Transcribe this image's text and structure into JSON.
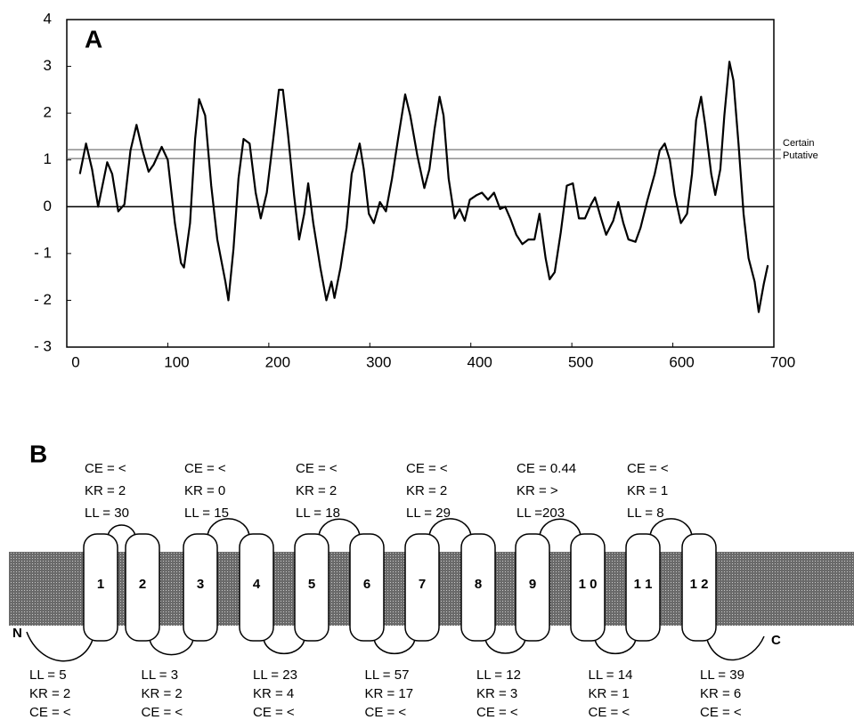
{
  "chart_data": {
    "type": "line",
    "panel_label": "A",
    "x": [
      13,
      19,
      25,
      31,
      40,
      45,
      51,
      57,
      63,
      69,
      75,
      81,
      86,
      94,
      100,
      107,
      113,
      116,
      122,
      127,
      131,
      137,
      143,
      149,
      157,
      160,
      165,
      170,
      175,
      181,
      187,
      192,
      198,
      205,
      210,
      214,
      219,
      225,
      230,
      235,
      239,
      244,
      251,
      257,
      262,
      265,
      271,
      277,
      282,
      287,
      290,
      294,
      299,
      304,
      310,
      316,
      322,
      328,
      335,
      340,
      347,
      354,
      359,
      364,
      369,
      373,
      378,
      384,
      389,
      394,
      399,
      406,
      411,
      417,
      423,
      429,
      434,
      439,
      445,
      451,
      457,
      463,
      468,
      474,
      478,
      483,
      489,
      495,
      501,
      507,
      513,
      519,
      523,
      529,
      534,
      541,
      546,
      551,
      556,
      563,
      568,
      575,
      582,
      587,
      592,
      597,
      602,
      608,
      614,
      619,
      623,
      628,
      632,
      638,
      642,
      647,
      651,
      656,
      660,
      665,
      670,
      675,
      681,
      685,
      690,
      694
    ],
    "values": [
      0.7,
      1.35,
      0.8,
      0.0,
      0.95,
      0.7,
      -0.1,
      0.05,
      1.2,
      1.75,
      1.2,
      0.75,
      0.9,
      1.28,
      1.0,
      -0.35,
      -1.2,
      -1.3,
      -0.35,
      1.45,
      2.3,
      1.95,
      0.45,
      -0.7,
      -1.6,
      -2.0,
      -0.9,
      0.6,
      1.45,
      1.35,
      0.3,
      -0.25,
      0.3,
      1.55,
      2.5,
      2.5,
      1.55,
      0.25,
      -0.7,
      -0.15,
      0.5,
      -0.35,
      -1.3,
      -2.0,
      -1.6,
      -1.95,
      -1.3,
      -0.45,
      0.7,
      1.1,
      1.35,
      0.8,
      -0.15,
      -0.35,
      0.1,
      -0.1,
      0.6,
      1.45,
      2.4,
      1.95,
      1.1,
      0.4,
      0.8,
      1.65,
      2.35,
      1.95,
      0.6,
      -0.25,
      -0.05,
      -0.3,
      0.15,
      0.25,
      0.3,
      0.15,
      0.3,
      -0.05,
      0.0,
      -0.25,
      -0.6,
      -0.8,
      -0.7,
      -0.7,
      -0.15,
      -1.1,
      -1.55,
      -1.4,
      -0.55,
      0.45,
      0.5,
      -0.25,
      -0.25,
      0.05,
      0.2,
      -0.25,
      -0.6,
      -0.3,
      0.1,
      -0.35,
      -0.7,
      -0.75,
      -0.45,
      0.15,
      0.7,
      1.2,
      1.35,
      1.0,
      0.25,
      -0.35,
      -0.15,
      0.7,
      1.85,
      2.35,
      1.75,
      0.7,
      0.25,
      0.8,
      1.95,
      3.1,
      2.7,
      1.35,
      -0.15,
      -1.1,
      -1.6,
      -2.25,
      -1.65,
      -1.25
    ],
    "color": "#000000",
    "xlim": [
      0,
      700
    ],
    "xticks": [
      0,
      100,
      200,
      300,
      400,
      500,
      600,
      700
    ],
    "ylim": [
      -3,
      4
    ],
    "yticks": [
      {
        "value": -3,
        "label": "- 3"
      },
      {
        "value": -2,
        "label": "- 2"
      },
      {
        "value": -1,
        "label": "- 1"
      },
      0,
      1,
      2,
      3,
      4
    ],
    "threshold_lines": [
      {
        "label": "Certain",
        "value": 1.22
      },
      {
        "label": "Putative",
        "value": 1.03
      }
    ]
  },
  "diagram": {
    "panel_label": "B",
    "n_terminus": "N",
    "c_terminus": "C",
    "helices": [
      "1",
      "2",
      "3",
      "4",
      "5",
      "6",
      "7",
      "8",
      "9",
      "1 0",
      "1 1",
      "1 2"
    ],
    "outer_loops": [
      [
        "CE = <",
        "KR = 2",
        "LL = 30"
      ],
      [
        "CE = <",
        "KR = 0",
        "LL = 15"
      ],
      [
        "CE = <",
        "KR = 2",
        "LL = 18"
      ],
      [
        "CE = <",
        "KR = 2",
        "LL = 29"
      ],
      [
        "CE =  0.44",
        "KR = >",
        "LL =203"
      ],
      [
        "CE = <",
        "KR = 1",
        "LL = 8"
      ]
    ],
    "inner_loops": [
      [
        "LL = 5",
        "KR = 2",
        "CE = <"
      ],
      [
        "LL = 3",
        "KR = 2",
        "CE = <"
      ],
      [
        "LL = 23",
        "KR = 4",
        "CE = <"
      ],
      [
        "LL = 57",
        "KR = 17",
        "CE = <"
      ],
      [
        "LL = 12",
        "KR = 3",
        "CE = <"
      ],
      [
        "LL = 14",
        "KR = 1",
        "CE = <"
      ],
      [
        "LL = 39",
        "KR = 6",
        "CE = <"
      ]
    ]
  }
}
